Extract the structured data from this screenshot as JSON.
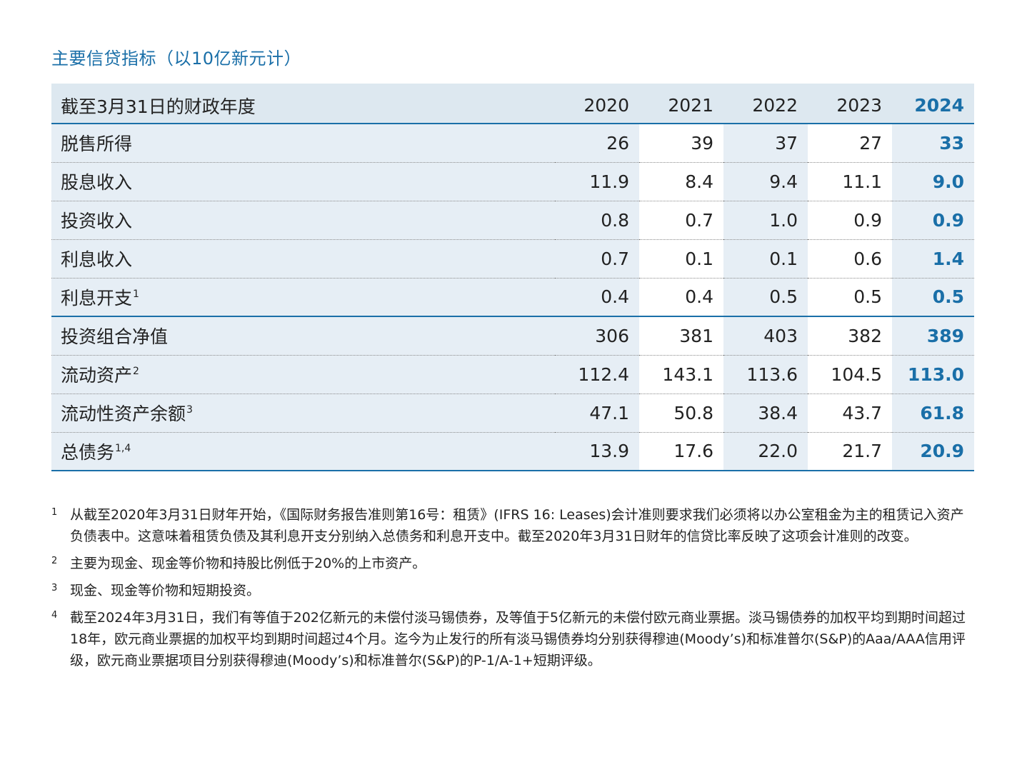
{
  "title": "主要信贷指标（以10亿新元计）",
  "table": {
    "header_label": "截至3月31日的财政年度",
    "years": [
      "2020",
      "2021",
      "2022",
      "2023",
      "2024"
    ],
    "rows": [
      {
        "label": "脱售所得",
        "sup": "",
        "values": [
          "26",
          "39",
          "37",
          "27",
          "33"
        ]
      },
      {
        "label": "股息收入",
        "sup": "",
        "values": [
          "11.9",
          "8.4",
          "9.4",
          "11.1",
          "9.0"
        ]
      },
      {
        "label": "投资收入",
        "sup": "",
        "values": [
          "0.8",
          "0.7",
          "1.0",
          "0.9",
          "0.9"
        ]
      },
      {
        "label": "利息收入",
        "sup": "",
        "values": [
          "0.7",
          "0.1",
          "0.1",
          "0.6",
          "1.4"
        ]
      },
      {
        "label": "利息开支",
        "sup": "1",
        "values": [
          "0.4",
          "0.4",
          "0.5",
          "0.5",
          "0.5"
        ]
      },
      {
        "label": "投资组合净值",
        "sup": "",
        "values": [
          "306",
          "381",
          "403",
          "382",
          "389"
        ]
      },
      {
        "label": "流动资产",
        "sup": "2",
        "values": [
          "112.4",
          "143.1",
          "113.6",
          "104.5",
          "113.0"
        ]
      },
      {
        "label": "流动性资产余额",
        "sup": "3",
        "values": [
          "47.1",
          "50.8",
          "38.4",
          "43.7",
          "61.8"
        ]
      },
      {
        "label": "总债务",
        "sup": "1,4",
        "values": [
          "13.9",
          "17.6",
          "22.0",
          "21.7",
          "20.9"
        ]
      }
    ]
  },
  "footnotes": [
    {
      "mark": "1",
      "text": "从截至2020年3月31日财年开始，《国际财务报告准则第16号：租赁》(IFRS 16: Leases)会计准则要求我们必须将以办公室租金为主的租赁记入资产负债表中。这意味着租赁负债及其利息开支分别纳入总债务和利息开支中。截至2020年3月31日财年的信贷比率反映了这项会计准则的改变。"
    },
    {
      "mark": "2",
      "text": "主要为现金、现金等价物和持股比例低于20%的上市资产。"
    },
    {
      "mark": "3",
      "text": "现金、现金等价物和短期投资。"
    },
    {
      "mark": "4",
      "text": "截至2024年3月31日，我们有等值于202亿新元的未偿付淡马锡债券，及等值于5亿新元的未偿付欧元商业票据。淡马锡债券的加权平均到期时间超过18年，欧元商业票据的加权平均到期时间超过4个月。迄今为止发行的所有淡马锡债券均分别获得穆迪(Moody’s)和标准普尔(S&P)的Aaa/AAA信用评级，欧元商业票据项目分别获得穆迪(Moody’s)和标准普尔(S&P)的P-1/A-1+短期评级。"
    }
  ],
  "colors": {
    "accent": "#1a6fa8",
    "header_bg": "#dde8f0",
    "shade_bg": "#e6eef5"
  }
}
